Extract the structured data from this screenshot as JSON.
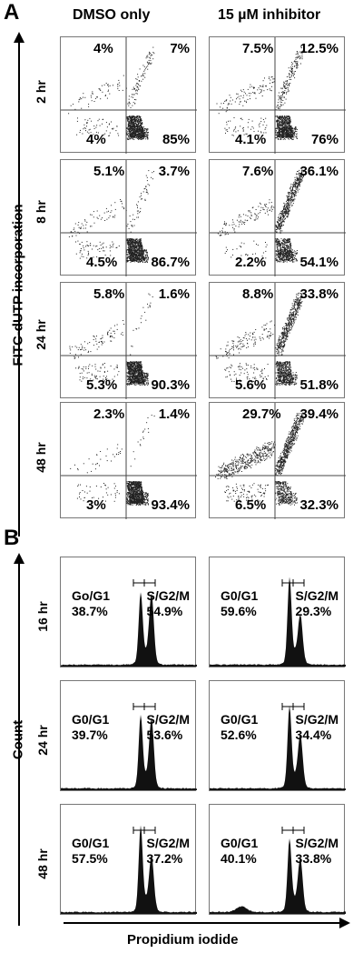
{
  "panel_a": {
    "letter": "A",
    "col_headers": [
      "DMSO only",
      "15 µM inhibitor"
    ],
    "y_axis_title": "FITC-dUTP incorporation",
    "row_labels": [
      "2 hr",
      "8 hr",
      "24 hr",
      "48 hr"
    ]
  },
  "panel_b": {
    "letter": "B",
    "y_axis_title": "Count",
    "x_axis_title": "Propidium iodide",
    "row_labels": [
      "16 hr",
      "24 hr",
      "48 hr"
    ]
  },
  "chart_data": [
    {
      "type": "scatter",
      "panel": "A",
      "columns": [
        "DMSO only",
        "15 µM inhibitor"
      ],
      "rows": [
        "2 hr",
        "8 hr",
        "24 hr",
        "48 hr"
      ],
      "quadrant_percentages": [
        [
          {
            "upper_left": "4%",
            "upper_right": "7%",
            "lower_left": "4%",
            "lower_right": "85%"
          },
          {
            "upper_left": "7.5%",
            "upper_right": "12.5%",
            "lower_left": "4.1%",
            "lower_right": "76%"
          }
        ],
        [
          {
            "upper_left": "5.1%",
            "upper_right": "3.7%",
            "lower_left": "4.5%",
            "lower_right": "86.7%"
          },
          {
            "upper_left": "7.6%",
            "upper_right": "36.1%",
            "lower_left": "2.2%",
            "lower_right": "54.1%"
          }
        ],
        [
          {
            "upper_left": "5.8%",
            "upper_right": "1.6%",
            "lower_left": "5.3%",
            "lower_right": "90.3%"
          },
          {
            "upper_left": "8.8%",
            "upper_right": "33.8%",
            "lower_left": "5.6%",
            "lower_right": "51.8%"
          }
        ],
        [
          {
            "upper_left": "2.3%",
            "upper_right": "1.4%",
            "lower_left": "3%",
            "lower_right": "93.4%"
          },
          {
            "upper_left": "29.7%",
            "upper_right": "39.4%",
            "lower_left": "6.5%",
            "lower_right": "32.3%"
          }
        ]
      ],
      "x_scale": "log",
      "y_scale": "log"
    },
    {
      "type": "area",
      "panel": "B",
      "columns": [
        "DMSO only",
        "15 µM inhibitor"
      ],
      "rows": [
        "16 hr",
        "24 hr",
        "48 hr"
      ],
      "gates": [
        [
          {
            "left_name": "Go/G1",
            "left_value": "38.7%",
            "right_name": "S/G2/M",
            "right_value": "54.9%"
          },
          {
            "left_name": "G0/G1",
            "left_value": "59.6%",
            "right_name": "S/G2/M",
            "right_value": "29.3%"
          }
        ],
        [
          {
            "left_name": "G0/G1",
            "left_value": "39.7%",
            "right_name": "S/G2/M",
            "right_value": "53.6%"
          },
          {
            "left_name": "G0/G1",
            "left_value": "52.6%",
            "right_name": "S/G2/M",
            "right_value": "34.4%"
          }
        ],
        [
          {
            "left_name": "G0/G1",
            "left_value": "57.5%",
            "right_name": "S/G2/M",
            "right_value": "37.2%"
          },
          {
            "left_name": "G0/G1",
            "left_value": "40.1%",
            "right_name": "S/G2/M",
            "right_value": "33.8%"
          }
        ]
      ]
    }
  ]
}
